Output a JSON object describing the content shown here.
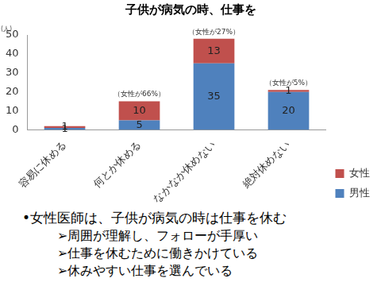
{
  "chart_data": {
    "type": "bar",
    "title": "子供が病気の時、仕事を",
    "ylabel": "(人)",
    "categories": [
      "容易に休める",
      "何とか休める",
      "なかなか休めない",
      "絶対休めない"
    ],
    "series": [
      {
        "name": "男性",
        "color": "#4f81bd",
        "values": [
          1,
          5,
          35,
          20
        ]
      },
      {
        "name": "女性",
        "color": "#c0504d",
        "values": [
          1,
          10,
          13,
          1
        ]
      }
    ],
    "stacked": true,
    "data_labels": true,
    "annotations": [
      {
        "category": "何とか休める",
        "text": "（女性が66%）"
      },
      {
        "category": "なかなか休めない",
        "text": "（女性が27%）"
      },
      {
        "category": "絶対休めない",
        "text": "（女性が5%）"
      }
    ],
    "ylim": [
      0,
      50
    ],
    "yticks": [
      0,
      10,
      20,
      30,
      40,
      50
    ],
    "grid": false,
    "legend": "lower right"
  },
  "text": {
    "heading": "•女性医師は、子供が病気の時は仕事を休む",
    "bullets": [
      "➢周囲が理解し、フォローが手厚い",
      "➢仕事を休むために働きかけている",
      "➢休みやすい仕事を選んでいる"
    ]
  }
}
